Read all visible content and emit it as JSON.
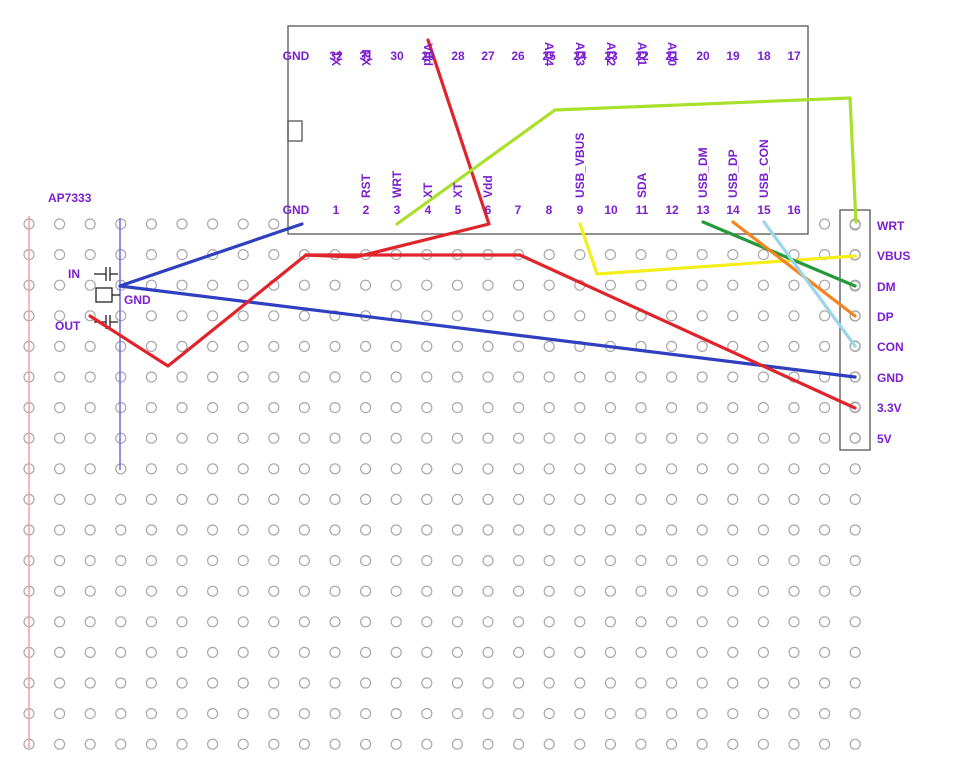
{
  "title": "AP7333",
  "ic": {
    "label_in": "IN",
    "label_gnd": "GND",
    "label_out": "OUT"
  },
  "module": {
    "top_pins": [
      {
        "num": "GND",
        "name": ""
      },
      {
        "num": "32",
        "name": "TX"
      },
      {
        "num": "31",
        "name": "RX"
      },
      {
        "num": "30",
        "name": ""
      },
      {
        "num": "29",
        "name": "Vdd"
      },
      {
        "num": "28",
        "name": ""
      },
      {
        "num": "27",
        "name": ""
      },
      {
        "num": "26",
        "name": ""
      },
      {
        "num": "25",
        "name": "AD4"
      },
      {
        "num": "24",
        "name": "AD3"
      },
      {
        "num": "23",
        "name": "AD2"
      },
      {
        "num": "22",
        "name": "AD1"
      },
      {
        "num": "21",
        "name": "AD0"
      },
      {
        "num": "20",
        "name": ""
      },
      {
        "num": "19",
        "name": ""
      },
      {
        "num": "18",
        "name": ""
      },
      {
        "num": "17",
        "name": ""
      }
    ],
    "bottom_pins": [
      {
        "num": "GND",
        "name": ""
      },
      {
        "num": "1",
        "name": ""
      },
      {
        "num": "2",
        "name": "RST"
      },
      {
        "num": "3",
        "name": "WRT"
      },
      {
        "num": "4",
        "name": "XT"
      },
      {
        "num": "5",
        "name": "XT"
      },
      {
        "num": "6",
        "name": "Vdd"
      },
      {
        "num": "7",
        "name": ""
      },
      {
        "num": "8",
        "name": ""
      },
      {
        "num": "9",
        "name": "USB_VBUS"
      },
      {
        "num": "10",
        "name": ""
      },
      {
        "num": "11",
        "name": "SDA"
      },
      {
        "num": "12",
        "name": ""
      },
      {
        "num": "13",
        "name": "USB_DM"
      },
      {
        "num": "14",
        "name": "USB_DP"
      },
      {
        "num": "15",
        "name": "USB_CON"
      },
      {
        "num": "16",
        "name": ""
      }
    ]
  },
  "connector_pins": [
    "WRT",
    "VBUS",
    "DM",
    "DP",
    "CON",
    "GND",
    "3.3V",
    "5V"
  ],
  "colors": {
    "label": "#7b1fd1",
    "hole": "#a8a8a8",
    "gnd_wire": "#2f3fbf",
    "power_wire": "#e0242c",
    "wrt_wire": "#a8e02a",
    "vbus_wire": "#f4ee1a",
    "dm_wire": "#239a3a",
    "dp_wire": "#f5841f",
    "con_wire": "#9bd5ea",
    "left_rail": "#f0a0a0",
    "gnd_rail": "#6a6ae0"
  }
}
